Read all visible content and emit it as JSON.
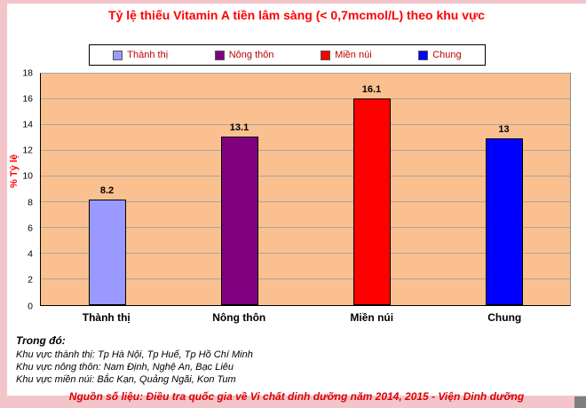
{
  "chart_data": {
    "type": "bar",
    "title": "Tỷ lệ thiếu Vitamin A tiền lâm sàng (< 0,7mcmol/L) theo khu vực",
    "categories": [
      "Thành thị",
      "Nông thôn",
      "Miền núi",
      "Chung"
    ],
    "values": [
      8.2,
      13.1,
      16.1,
      13
    ],
    "value_labels": [
      "8.2",
      "13.1",
      "16.1",
      "13"
    ],
    "series_colors": [
      "#9999FF",
      "#800080",
      "#FF0000",
      "#0000FF"
    ],
    "xlabel": "",
    "ylabel": "% Tỷ lệ",
    "ylim": [
      0,
      18
    ],
    "yticks": [
      0,
      2,
      4,
      6,
      8,
      10,
      12,
      14,
      16,
      18
    ],
    "grid": true,
    "legend_position": "top",
    "legend": [
      {
        "label": "Thành thị",
        "color": "#9999FF"
      },
      {
        "label": "Nông thôn",
        "color": "#800080"
      },
      {
        "label": "Miền núi",
        "color": "#FF0000"
      },
      {
        "label": "Chung",
        "color": "#0000FF"
      }
    ]
  },
  "colors": {
    "frame": "#F3C5CB",
    "plot_background": "#FAC090",
    "title_text": "#FF0000",
    "legend_text": "#C00000",
    "source_text": "#DD0000"
  },
  "footnotes": {
    "heading": "Trong đó:",
    "lines": [
      "Khu vực thành thị: Tp Hà Nội, Tp Huế, Tp Hồ Chí Minh",
      "Khu vực nông thôn: Nam Định, Nghệ An, Bạc Liêu",
      "Khu vực miền núi: Bắc Kạn, Quảng Ngãi, Kon Tum"
    ],
    "source": "Nguồn số liệu: Điều tra quốc gia về Vi chất dinh dưỡng năm 2014, 2015 - Viện Dinh dưỡng"
  }
}
